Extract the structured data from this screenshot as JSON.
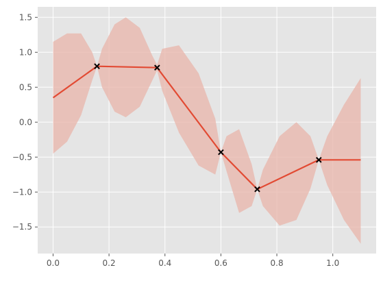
{
  "chart_data": {
    "type": "line",
    "title": "",
    "xlabel": "",
    "ylabel": "",
    "xlim": [
      -0.055,
      1.155
    ],
    "ylim": [
      -1.88,
      1.65
    ],
    "grid": true,
    "x_ticks": [
      0.0,
      0.2,
      0.4,
      0.6,
      0.8,
      1.0
    ],
    "x_tick_labels": [
      "0.0",
      "0.2",
      "0.4",
      "0.6",
      "0.8",
      "1.0"
    ],
    "y_ticks": [
      1.5,
      1.0,
      0.5,
      0.0,
      -0.5,
      -1.0,
      -1.5
    ],
    "y_tick_labels": [
      "1.5",
      "1.0",
      "0.5",
      "0.0",
      "−0.5",
      "−1.0",
      "−1.5"
    ],
    "series": [
      {
        "kind": "line",
        "x": [
          0.0,
          0.157,
          0.372,
          0.6,
          0.73,
          0.95,
          1.1
        ],
        "values": [
          0.35,
          0.8,
          0.78,
          -0.43,
          -0.96,
          -0.54,
          -0.54
        ]
      },
      {
        "kind": "scatter",
        "marker": "x",
        "x": [
          0.157,
          0.372,
          0.6,
          0.73,
          0.95
        ],
        "values": [
          0.8,
          0.78,
          -0.43,
          -0.96,
          -0.54
        ]
      }
    ],
    "band": {
      "kind": "confidence-interval",
      "x": [
        0.0,
        0.05,
        0.1,
        0.14,
        0.157,
        0.175,
        0.22,
        0.26,
        0.31,
        0.355,
        0.372,
        0.39,
        0.45,
        0.52,
        0.58,
        0.6,
        0.62,
        0.665,
        0.71,
        0.73,
        0.75,
        0.81,
        0.87,
        0.92,
        0.95,
        0.98,
        1.04,
        1.1
      ],
      "upper": [
        1.15,
        1.27,
        1.27,
        1.0,
        0.8,
        1.05,
        1.4,
        1.5,
        1.35,
        0.95,
        0.82,
        1.05,
        1.1,
        0.7,
        0.05,
        -0.43,
        -0.2,
        -0.1,
        -0.6,
        -0.96,
        -0.68,
        -0.2,
        0.0,
        -0.2,
        -0.54,
        -0.2,
        0.25,
        0.63
      ],
      "lower": [
        -0.45,
        -0.28,
        0.1,
        0.6,
        0.8,
        0.5,
        0.15,
        0.07,
        0.22,
        0.6,
        0.74,
        0.45,
        -0.15,
        -0.62,
        -0.75,
        -0.43,
        -0.7,
        -1.3,
        -1.2,
        -0.96,
        -1.2,
        -1.48,
        -1.4,
        -0.95,
        -0.54,
        -0.9,
        -1.4,
        -1.74
      ]
    },
    "colors": {
      "line": "#e24a33",
      "band": "#e8b4aa",
      "marker": "#000000",
      "plot_background": "#e5e5e5",
      "grid": "#ffffff"
    }
  }
}
